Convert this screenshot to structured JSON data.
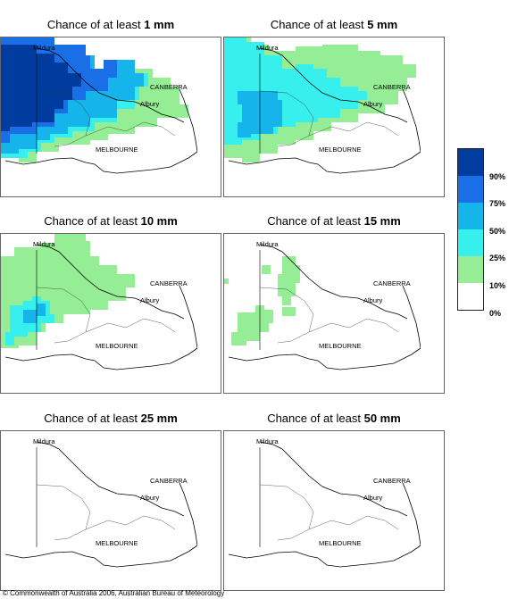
{
  "panels": [
    {
      "prefix": "Chance of at least ",
      "amount": "1 mm"
    },
    {
      "prefix": "Chance of at least ",
      "amount": "5 mm"
    },
    {
      "prefix": "Chance of at least ",
      "amount": "10 mm"
    },
    {
      "prefix": "Chance of at least ",
      "amount": "15 mm"
    },
    {
      "prefix": "Chance of at least ",
      "amount": "25 mm"
    },
    {
      "prefix": "Chance of at least ",
      "amount": "50 mm"
    }
  ],
  "places": {
    "mildura": "Mildura",
    "canberra": "CANBERRA",
    "albury": "Albury",
    "melbourne": "MELBOURNE"
  },
  "legend": {
    "labels": [
      "90%",
      "75%",
      "50%",
      "25%",
      "10%",
      "0%"
    ],
    "colors": [
      "#003c9e",
      "#1a6ee6",
      "#15b4ea",
      "#37f0ee",
      "#95ee95",
      "#ffffff"
    ]
  },
  "copyright": "© Commonwealth of Australia 2006, Australian Bureau of Meteorology"
}
